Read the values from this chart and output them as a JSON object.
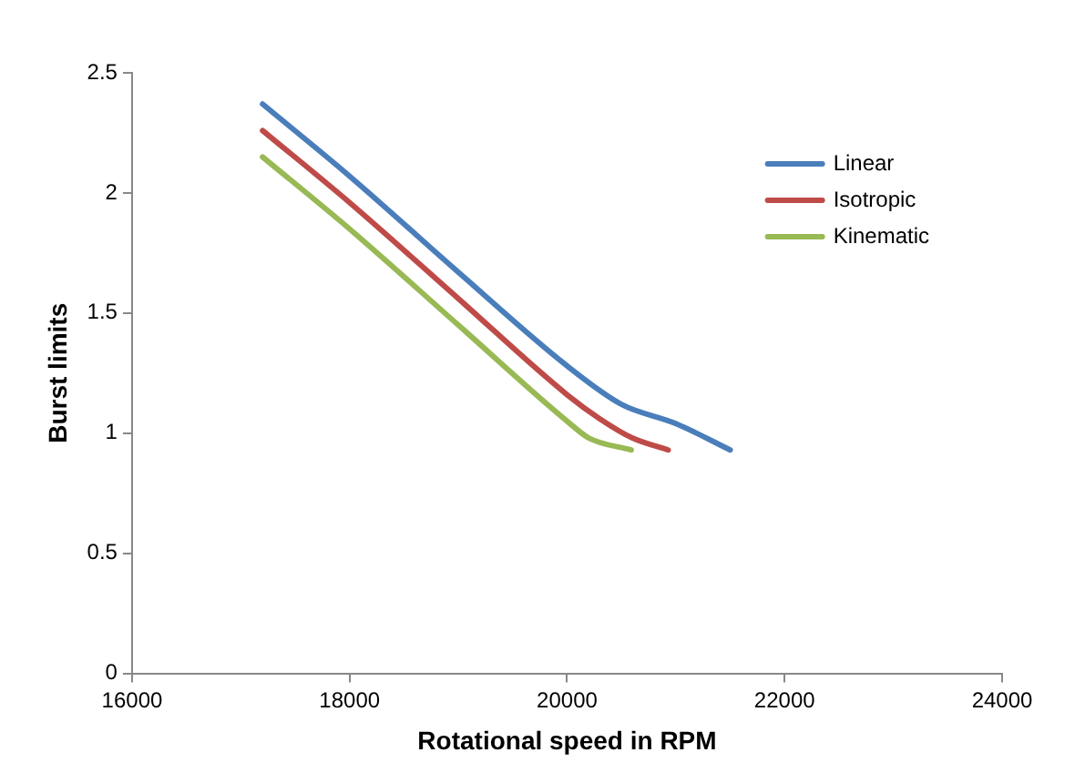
{
  "chart_data": {
    "type": "line",
    "xlabel": "Rotational speed in RPM",
    "ylabel": "Burst limits",
    "xlim": [
      16000,
      24000
    ],
    "xticks": [
      16000,
      18000,
      20000,
      22000,
      24000
    ],
    "ylim": [
      0,
      2.5
    ],
    "yticks": [
      0,
      0.5,
      1,
      1.5,
      2,
      2.5
    ],
    "grid": false,
    "legend": "top right",
    "marker": "none",
    "line_style": "solid",
    "series": [
      {
        "name": "Linear",
        "color": "#4a7ebb",
        "x": [
          17200,
          18000,
          19000,
          20000,
          20500,
          21000,
          21500
        ],
        "values": [
          2.37,
          2.07,
          1.67,
          1.28,
          1.12,
          1.04,
          0.93
        ]
      },
      {
        "name": "Isotropic",
        "color": "#be4b48",
        "x": [
          17200,
          18000,
          19000,
          20000,
          20300,
          20600,
          20930
        ],
        "values": [
          2.26,
          1.96,
          1.56,
          1.16,
          1.06,
          0.98,
          0.93
        ]
      },
      {
        "name": "Kinematic",
        "color": "#98b954",
        "x": [
          17200,
          18000,
          19000,
          20000,
          20200,
          20590
        ],
        "values": [
          2.15,
          1.85,
          1.45,
          1.05,
          0.98,
          0.93
        ]
      }
    ]
  }
}
